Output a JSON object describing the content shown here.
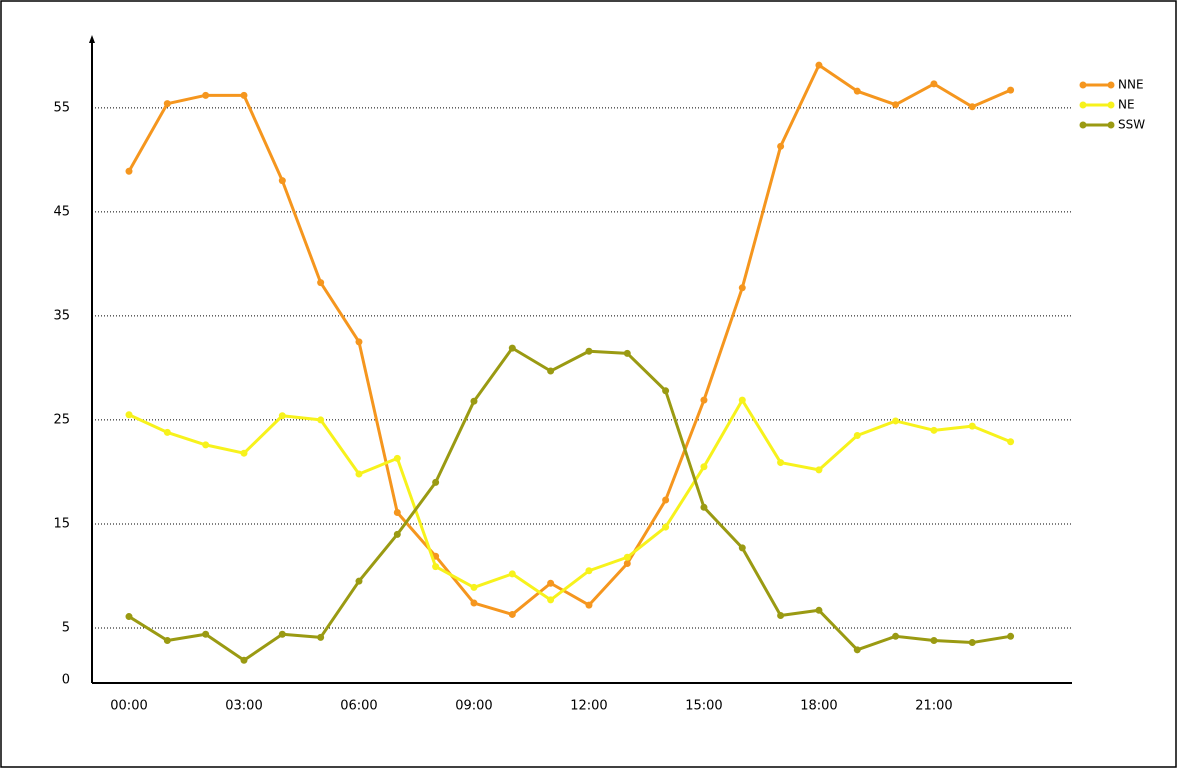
{
  "chart_data": {
    "type": "line",
    "categories": [
      "00:00",
      null,
      null,
      "03:00",
      null,
      null,
      "06:00",
      null,
      null,
      "09:00",
      null,
      null,
      "12:00",
      null,
      null,
      "15:00",
      null,
      null,
      "18:00",
      null,
      null,
      "21:00",
      null,
      null
    ],
    "series": [
      {
        "name": "NNE",
        "color": "#f5961e",
        "values": [
          48.9,
          55.4,
          56.2,
          56.2,
          48,
          38.2,
          32.5,
          16.1,
          11.9,
          7.4,
          6.3,
          9.3,
          7.2,
          11.2,
          17.3,
          26.9,
          37.7,
          51.3,
          59.1,
          56.6,
          55.3,
          57.3,
          55.1,
          56.7
        ]
      },
      {
        "name": "NE",
        "color": "#f7f21c",
        "values": [
          25.5,
          23.8,
          22.6,
          21.8,
          25.4,
          25,
          19.8,
          21.3,
          10.9,
          8.9,
          10.2,
          7.7,
          10.5,
          11.8,
          14.7,
          20.5,
          26.9,
          20.9,
          20.2,
          23.5,
          24.9,
          24,
          24.4,
          22.9
        ]
      },
      {
        "name": "SSW",
        "color": "#9a9a12",
        "values": [
          6.1,
          3.8,
          4.4,
          1.9,
          4.4,
          4.1,
          9.5,
          14,
          19,
          26.8,
          31.9,
          29.7,
          31.6,
          31.4,
          27.8,
          16.6,
          12.7,
          6.2,
          6.7,
          2.9,
          4.2,
          3.8,
          3.6,
          4.2
        ]
      }
    ],
    "ylim": [
      0,
      62
    ],
    "yticks": [
      0,
      5,
      15,
      25,
      35,
      45,
      55
    ],
    "grid": true,
    "legend": "top-right"
  }
}
